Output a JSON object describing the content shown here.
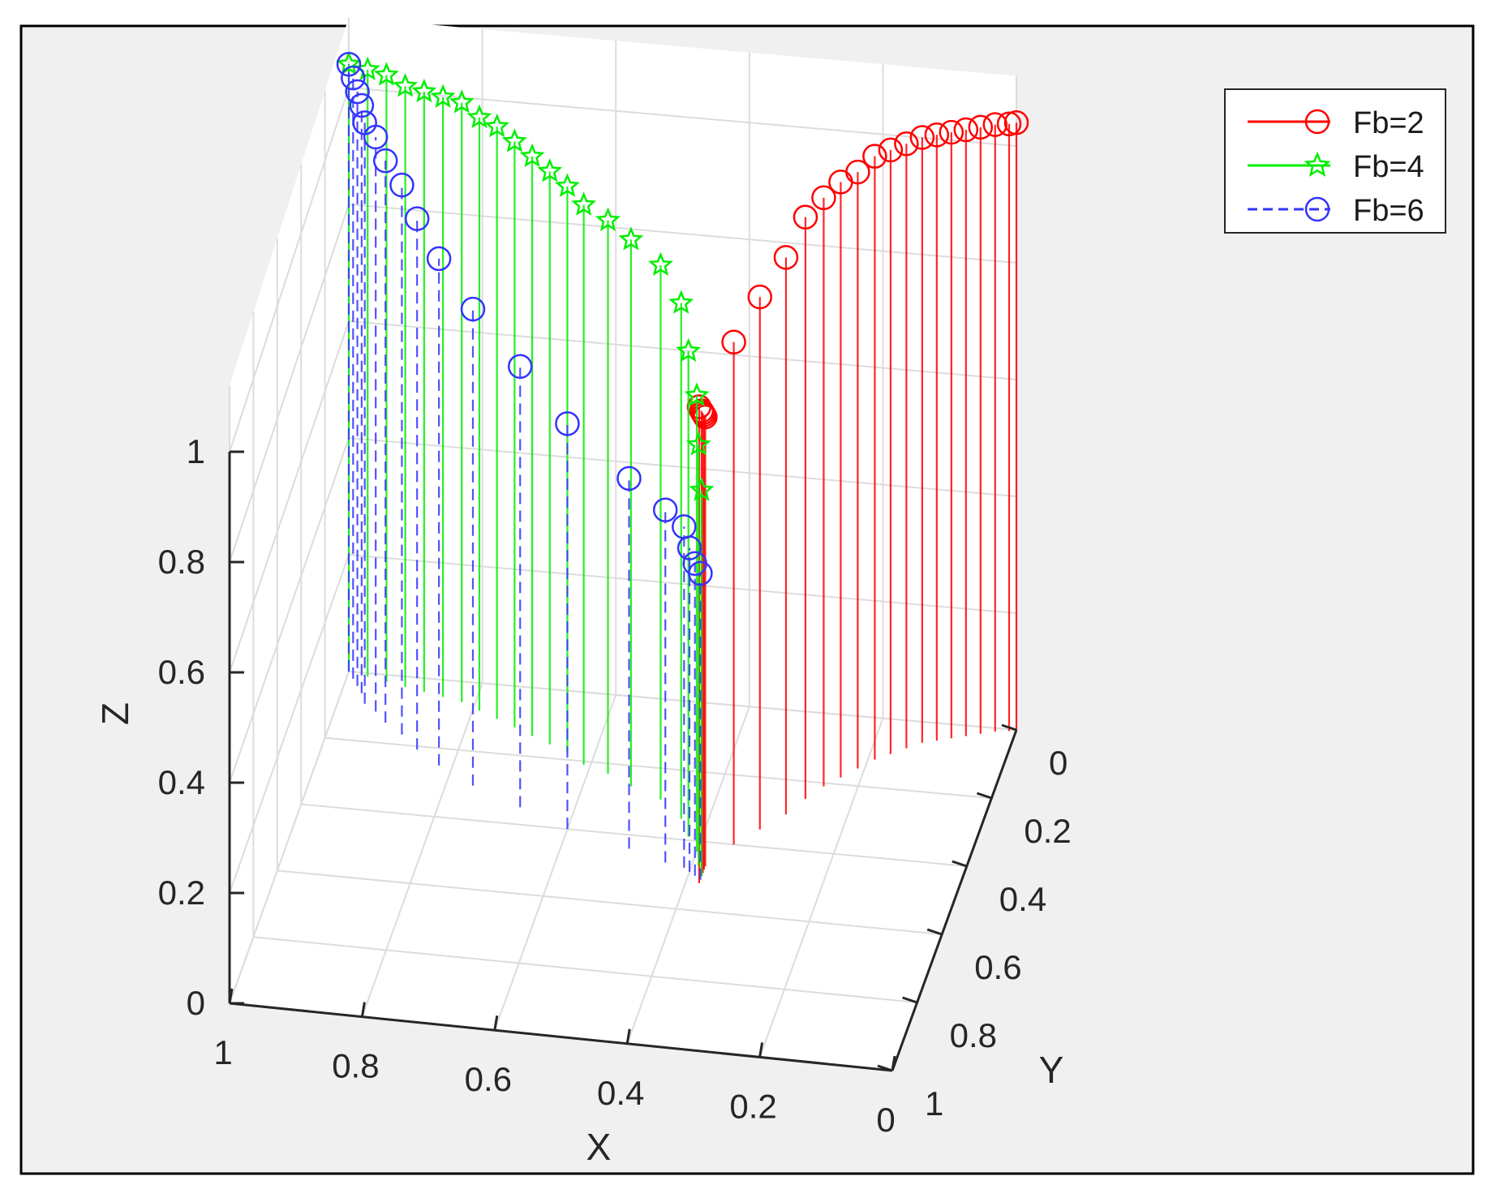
{
  "chart_data": {
    "type": "3d-stem",
    "title": "",
    "xlabel": "X",
    "ylabel": "Y",
    "zlabel": "Z",
    "xlim": [
      0,
      1
    ],
    "ylim": [
      0,
      1
    ],
    "zlim": [
      0,
      1
    ],
    "x_reversed": true,
    "grid": true,
    "legend_position": "top-right",
    "x_ticks": [
      {
        "value": 1,
        "label": "1"
      },
      {
        "value": 0.8,
        "label": "0.8"
      },
      {
        "value": 0.6,
        "label": "0.6"
      },
      {
        "value": 0.4,
        "label": "0.4"
      },
      {
        "value": 0.2,
        "label": "0.2"
      },
      {
        "value": 0,
        "label": "0"
      }
    ],
    "y_ticks": [
      {
        "value": 0,
        "label": "0"
      },
      {
        "value": 0.2,
        "label": "0.2"
      },
      {
        "value": 0.4,
        "label": "0.4"
      },
      {
        "value": 0.6,
        "label": "0.6"
      },
      {
        "value": 0.8,
        "label": "0.8"
      },
      {
        "value": 1,
        "label": "1"
      }
    ],
    "z_ticks": [
      {
        "value": 0,
        "label": "0"
      },
      {
        "value": 0.2,
        "label": "0.2"
      },
      {
        "value": 0.4,
        "label": "0.4"
      },
      {
        "value": 0.6,
        "label": "0.6"
      },
      {
        "value": 0.8,
        "label": "0.8"
      },
      {
        "value": 1,
        "label": "1"
      }
    ],
    "series": [
      {
        "name": "Fb=2",
        "color": "#ff0000",
        "marker": "circle",
        "line_style": "solid",
        "points": [
          {
            "x": 0.38,
            "y": 0.52,
            "z": 0.84
          },
          {
            "x": 0.38,
            "y": 0.5,
            "z": 0.82
          },
          {
            "x": 0.38,
            "y": 0.49,
            "z": 0.81
          },
          {
            "x": 0.38,
            "y": 0.48,
            "z": 0.8
          },
          {
            "x": 0.38,
            "y": 0.47,
            "z": 0.79
          },
          {
            "x": 0.35,
            "y": 0.4,
            "z": 0.88
          },
          {
            "x": 0.32,
            "y": 0.35,
            "z": 0.93
          },
          {
            "x": 0.29,
            "y": 0.3,
            "z": 0.97
          },
          {
            "x": 0.27,
            "y": 0.25,
            "z": 1.01
          },
          {
            "x": 0.25,
            "y": 0.21,
            "z": 1.02
          },
          {
            "x": 0.23,
            "y": 0.18,
            "z": 1.03
          },
          {
            "x": 0.21,
            "y": 0.15,
            "z": 1.03
          },
          {
            "x": 0.19,
            "y": 0.12,
            "z": 1.04
          },
          {
            "x": 0.17,
            "y": 0.1,
            "z": 1.04
          },
          {
            "x": 0.15,
            "y": 0.08,
            "z": 1.04
          },
          {
            "x": 0.13,
            "y": 0.06,
            "z": 1.04
          },
          {
            "x": 0.11,
            "y": 0.05,
            "z": 1.04
          },
          {
            "x": 0.09,
            "y": 0.04,
            "z": 1.04
          },
          {
            "x": 0.07,
            "y": 0.03,
            "z": 1.04
          },
          {
            "x": 0.05,
            "y": 0.02,
            "z": 1.04
          },
          {
            "x": 0.03,
            "y": 0.01,
            "z": 1.04
          },
          {
            "x": 0.01,
            "y": 0.005,
            "z": 1.04
          },
          {
            "x": 0.0,
            "y": 0.0,
            "z": 1.04
          }
        ]
      },
      {
        "name": "Fb=4",
        "color": "#00ee00",
        "marker": "star",
        "line_style": "solid",
        "points": [
          {
            "x": 1.0,
            "y": 0.0,
            "z": 1.04
          },
          {
            "x": 0.97,
            "y": 0.01,
            "z": 1.04
          },
          {
            "x": 0.94,
            "y": 0.02,
            "z": 1.04
          },
          {
            "x": 0.91,
            "y": 0.03,
            "z": 1.03
          },
          {
            "x": 0.88,
            "y": 0.04,
            "z": 1.03
          },
          {
            "x": 0.85,
            "y": 0.05,
            "z": 1.03
          },
          {
            "x": 0.82,
            "y": 0.06,
            "z": 1.03
          },
          {
            "x": 0.79,
            "y": 0.08,
            "z": 1.02
          },
          {
            "x": 0.76,
            "y": 0.1,
            "z": 1.02
          },
          {
            "x": 0.73,
            "y": 0.12,
            "z": 1.01
          },
          {
            "x": 0.7,
            "y": 0.14,
            "z": 1.0
          },
          {
            "x": 0.67,
            "y": 0.16,
            "z": 0.99
          },
          {
            "x": 0.64,
            "y": 0.18,
            "z": 0.98
          },
          {
            "x": 0.61,
            "y": 0.21,
            "z": 0.97
          },
          {
            "x": 0.57,
            "y": 0.23,
            "z": 0.96
          },
          {
            "x": 0.53,
            "y": 0.26,
            "z": 0.95
          },
          {
            "x": 0.48,
            "y": 0.29,
            "z": 0.93
          },
          {
            "x": 0.44,
            "y": 0.34,
            "z": 0.9
          },
          {
            "x": 0.42,
            "y": 0.39,
            "z": 0.85
          },
          {
            "x": 0.4,
            "y": 0.43,
            "z": 0.8
          },
          {
            "x": 0.39,
            "y": 0.47,
            "z": 0.74
          },
          {
            "x": 0.38,
            "y": 0.5,
            "z": 0.68
          }
        ]
      },
      {
        "name": "Fb=6",
        "color": "#3333ff",
        "marker": "circle",
        "line_style": "dashed",
        "points": [
          {
            "x": 1.0,
            "y": 0.0,
            "z": 1.04
          },
          {
            "x": 0.99,
            "y": 0.02,
            "z": 1.03
          },
          {
            "x": 0.98,
            "y": 0.04,
            "z": 1.02
          },
          {
            "x": 0.97,
            "y": 0.06,
            "z": 1.01
          },
          {
            "x": 0.96,
            "y": 0.09,
            "z": 1.0
          },
          {
            "x": 0.94,
            "y": 0.11,
            "z": 0.99
          },
          {
            "x": 0.92,
            "y": 0.14,
            "z": 0.97
          },
          {
            "x": 0.89,
            "y": 0.17,
            "z": 0.95
          },
          {
            "x": 0.86,
            "y": 0.21,
            "z": 0.92
          },
          {
            "x": 0.82,
            "y": 0.25,
            "z": 0.88
          },
          {
            "x": 0.76,
            "y": 0.3,
            "z": 0.83
          },
          {
            "x": 0.68,
            "y": 0.35,
            "z": 0.77
          },
          {
            "x": 0.6,
            "y": 0.4,
            "z": 0.71
          },
          {
            "x": 0.5,
            "y": 0.44,
            "z": 0.65
          },
          {
            "x": 0.44,
            "y": 0.47,
            "z": 0.62
          },
          {
            "x": 0.41,
            "y": 0.48,
            "z": 0.6
          },
          {
            "x": 0.4,
            "y": 0.49,
            "z": 0.57
          },
          {
            "x": 0.39,
            "y": 0.5,
            "z": 0.55
          },
          {
            "x": 0.38,
            "y": 0.51,
            "z": 0.54
          }
        ]
      }
    ]
  }
}
